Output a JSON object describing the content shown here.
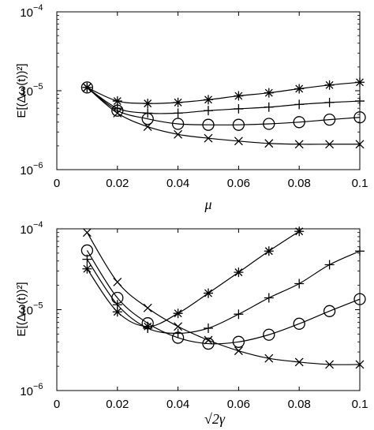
{
  "chart_data": [
    {
      "type": "line",
      "xlabel": "μ",
      "ylabel": "E[(Δω(t))²]",
      "xlim": [
        0,
        0.1
      ],
      "ylim": [
        1e-06,
        0.0001
      ],
      "yscale": "log",
      "x_ticks": [
        "0",
        "0.02",
        "0.04",
        "0.06",
        "0.08",
        "0.1"
      ],
      "y_ticks": [
        {
          "base": "10",
          "exp": "−6"
        },
        {
          "base": "10",
          "exp": "−5"
        },
        {
          "base": "10",
          "exp": "−4"
        }
      ],
      "x": [
        0.01,
        0.02,
        0.03,
        0.04,
        0.05,
        0.06,
        0.07,
        0.08,
        0.09,
        0.1
      ],
      "series": [
        {
          "marker": "asterisk",
          "values": [
            1.1e-05,
            7.4e-06,
            6.9e-06,
            7.1e-06,
            7.7e-06,
            8.6e-06,
            9.4e-06,
            1.06e-05,
            1.18e-05,
            1.28e-05
          ]
        },
        {
          "marker": "plus",
          "values": [
            1.1e-05,
            6e-06,
            5.2e-06,
            5.2e-06,
            5.6e-06,
            5.9e-06,
            6.2e-06,
            6.7e-06,
            7.1e-06,
            7.4e-06
          ]
        },
        {
          "marker": "circle",
          "values": [
            1.1e-05,
            5.6e-06,
            4.4e-06,
            3.8e-06,
            3.7e-06,
            3.7e-06,
            3.8e-06,
            4e-06,
            4.3e-06,
            4.6e-06
          ]
        },
        {
          "marker": "cross",
          "values": [
            1.1e-05,
            5.2e-06,
            3.5e-06,
            2.8e-06,
            2.5e-06,
            2.3e-06,
            2.15e-06,
            2.1e-06,
            2.1e-06,
            2.1e-06
          ]
        }
      ],
      "grid": false,
      "legend": "none"
    },
    {
      "type": "line",
      "xlabel": "√2γ",
      "ylabel": "E[(Δω(t))²]",
      "xlim": [
        0,
        0.1
      ],
      "ylim": [
        1e-06,
        0.0001
      ],
      "yscale": "log",
      "x_ticks": [
        "0",
        "0.02",
        "0.04",
        "0.06",
        "0.08",
        "0.1"
      ],
      "y_ticks": [
        {
          "base": "10",
          "exp": "−6"
        },
        {
          "base": "10",
          "exp": "−5"
        },
        {
          "base": "10",
          "exp": "−4"
        }
      ],
      "series": [
        {
          "marker": "asterisk",
          "x": [
            0.01,
            0.02,
            0.03,
            0.04,
            0.05,
            0.06,
            0.07,
            0.08
          ],
          "values": [
            3.2e-05,
            9.4e-06,
            6.2e-06,
            9e-06,
            1.6e-05,
            2.9e-05,
            5.3e-05,
            9.3e-05
          ]
        },
        {
          "marker": "plus",
          "x": [
            0.01,
            0.02,
            0.03,
            0.04,
            0.05,
            0.06,
            0.07,
            0.08,
            0.09,
            0.1
          ],
          "values": [
            4.2e-05,
            1.15e-05,
            5.9e-06,
            5.1e-06,
            5.9e-06,
            8.8e-06,
            1.4e-05,
            2.1e-05,
            3.6e-05,
            5.3e-05
          ]
        },
        {
          "marker": "circle",
          "x": [
            0.01,
            0.02,
            0.03,
            0.04,
            0.05,
            0.06,
            0.07,
            0.08,
            0.09,
            0.1
          ],
          "values": [
            5.4e-05,
            1.4e-05,
            6.8e-06,
            4.5e-06,
            3.8e-06,
            4e-06,
            4.9e-06,
            6.7e-06,
            9.6e-06,
            1.35e-05
          ]
        },
        {
          "marker": "cross",
          "x": [
            0.01,
            0.02,
            0.03,
            0.04,
            0.05,
            0.06,
            0.07,
            0.08,
            0.09,
            0.1
          ],
          "values": [
            9e-05,
            2.2e-05,
            1.05e-05,
            6.2e-06,
            4.2e-06,
            3.1e-06,
            2.5e-06,
            2.25e-06,
            2.1e-06,
            2.1e-06
          ]
        }
      ],
      "grid": false,
      "legend": "none"
    }
  ]
}
